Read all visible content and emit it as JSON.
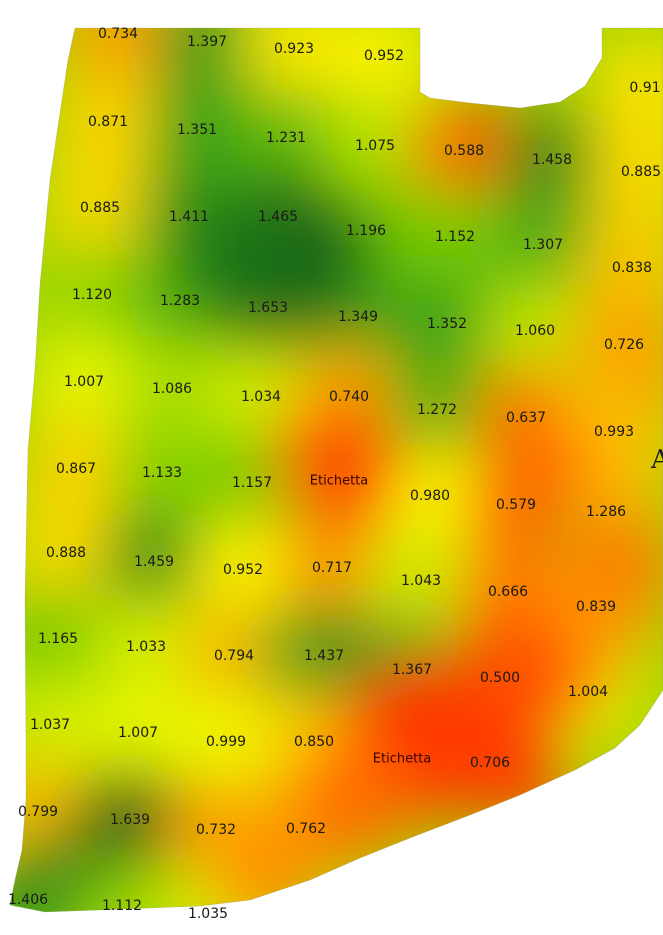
{
  "edge_letter": "A",
  "colors": {
    "low": "#ff2200",
    "mid_low": "#ff9900",
    "mid": "#ffff00",
    "mid_high": "#77cc00",
    "high": "#2c9a1c",
    "highest": "#145a12"
  },
  "map": {
    "type": "interpolated value heatmap",
    "color_scale": "red (low) to yellow to green (high)",
    "labels": [
      {
        "text": "0.734",
        "value": 0.734
      },
      {
        "text": "1.397",
        "value": 1.397
      },
      {
        "text": "0.923",
        "value": 0.923
      },
      {
        "text": "0.952",
        "value": 0.952
      },
      {
        "text": "0.91",
        "value": 0.91
      },
      {
        "text": "0.871",
        "value": 0.871
      },
      {
        "text": "1.351",
        "value": 1.351
      },
      {
        "text": "1.231",
        "value": 1.231
      },
      {
        "text": "1.075",
        "value": 1.075
      },
      {
        "text": "0.588",
        "value": 0.588
      },
      {
        "text": "1.458",
        "value": 1.458
      },
      {
        "text": "0.885",
        "value": 0.885
      },
      {
        "text": "0.885",
        "value": 0.885
      },
      {
        "text": "1.411",
        "value": 1.411
      },
      {
        "text": "1.465",
        "value": 1.465
      },
      {
        "text": "1.196",
        "value": 1.196
      },
      {
        "text": "1.152",
        "value": 1.152
      },
      {
        "text": "1.307",
        "value": 1.307
      },
      {
        "text": "0.838",
        "value": 0.838
      },
      {
        "text": "1.120",
        "value": 1.12
      },
      {
        "text": "1.283",
        "value": 1.283
      },
      {
        "text": "1.653",
        "value": 1.653
      },
      {
        "text": "1.349",
        "value": 1.349
      },
      {
        "text": "1.352",
        "value": 1.352
      },
      {
        "text": "1.060",
        "value": 1.06
      },
      {
        "text": "0.726",
        "value": 0.726
      },
      {
        "text": "1.007",
        "value": 1.007
      },
      {
        "text": "1.086",
        "value": 1.086
      },
      {
        "text": "1.034",
        "value": 1.034
      },
      {
        "text": "0.740",
        "value": 0.74
      },
      {
        "text": "1.272",
        "value": 1.272
      },
      {
        "text": "0.637",
        "value": 0.637
      },
      {
        "text": "0.993",
        "value": 0.993
      },
      {
        "text": "0.867",
        "value": 0.867
      },
      {
        "text": "1.133",
        "value": 1.133
      },
      {
        "text": "1.157",
        "value": 1.157
      },
      {
        "text": "Etichetta",
        "value": 0.45
      },
      {
        "text": "0.980",
        "value": 0.98
      },
      {
        "text": "0.579",
        "value": 0.579
      },
      {
        "text": "1.286",
        "value": 1.286
      },
      {
        "text": "0.888",
        "value": 0.888
      },
      {
        "text": "1.459",
        "value": 1.459
      },
      {
        "text": "0.952",
        "value": 0.952
      },
      {
        "text": "0.717",
        "value": 0.717
      },
      {
        "text": "1.043",
        "value": 1.043
      },
      {
        "text": "0.666",
        "value": 0.666
      },
      {
        "text": "0.839",
        "value": 0.839
      },
      {
        "text": "1.165",
        "value": 1.165
      },
      {
        "text": "1.033",
        "value": 1.033
      },
      {
        "text": "0.794",
        "value": 0.794
      },
      {
        "text": "1.437",
        "value": 1.437
      },
      {
        "text": "1.367",
        "value": 1.367
      },
      {
        "text": "0.500",
        "value": 0.5
      },
      {
        "text": "1.004",
        "value": 1.004
      },
      {
        "text": "1.037",
        "value": 1.037
      },
      {
        "text": "1.007",
        "value": 1.007
      },
      {
        "text": "0.999",
        "value": 0.999
      },
      {
        "text": "0.850",
        "value": 0.85
      },
      {
        "text": "Etichetta",
        "value": 0.45
      },
      {
        "text": "0.706",
        "value": 0.706
      },
      {
        "text": "0.799",
        "value": 0.799
      },
      {
        "text": "1.639",
        "value": 1.639
      },
      {
        "text": "0.732",
        "value": 0.732
      },
      {
        "text": "0.762",
        "value": 0.762
      },
      {
        "text": "1.406",
        "value": 1.406
      },
      {
        "text": "1.112",
        "value": 1.112
      },
      {
        "text": "1.035",
        "value": 1.035
      }
    ]
  }
}
